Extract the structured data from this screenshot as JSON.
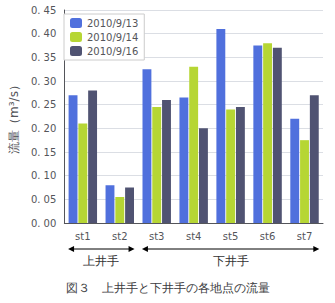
{
  "chart_data": {
    "type": "bar",
    "title": "図３　上井手と下井手の各地点の流量",
    "ylabel": "流量（m³/s）",
    "categories": [
      "st1",
      "st2",
      "st3",
      "st4",
      "st5",
      "st6",
      "st7"
    ],
    "series": [
      {
        "name": "2010/9/13",
        "values": [
          0.27,
          0.08,
          0.325,
          0.265,
          0.41,
          0.375,
          0.22
        ]
      },
      {
        "name": "2010/9/14",
        "values": [
          0.21,
          0.055,
          0.245,
          0.33,
          0.24,
          0.38,
          0.175
        ]
      },
      {
        "name": "2010/9/16",
        "values": [
          0.28,
          0.075,
          0.26,
          0.2,
          0.245,
          0.37,
          0.27
        ]
      }
    ],
    "ylim": [
      0.0,
      0.45
    ],
    "yticks": [
      {
        "value": 0.0,
        "label": "0. 00"
      },
      {
        "value": 0.05,
        "label": "0. 05"
      },
      {
        "value": 0.1,
        "label": "0. 10"
      },
      {
        "value": 0.15,
        "label": "0. 15"
      },
      {
        "value": 0.2,
        "label": "0. 20"
      },
      {
        "value": 0.25,
        "label": "0. 25"
      },
      {
        "value": 0.3,
        "label": "0. 30"
      },
      {
        "value": 0.35,
        "label": "0. 35"
      },
      {
        "value": 0.4,
        "label": "0. 40"
      },
      {
        "value": 0.45,
        "label": "0. 45"
      }
    ],
    "grid": true,
    "legend": "upper left",
    "annotations": [
      {
        "text": "上井手",
        "from": "st1",
        "to": "st2"
      },
      {
        "text": "下井手",
        "from": "st3",
        "to": "st7"
      }
    ]
  }
}
